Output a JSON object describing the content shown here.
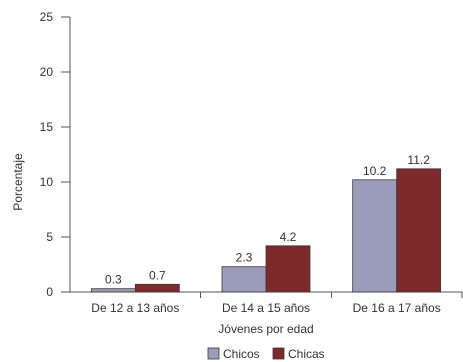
{
  "chart_data": {
    "type": "bar",
    "title": "",
    "xlabel": "Jóvenes por edad",
    "ylabel": "Porcentaje",
    "ylim": [
      0,
      25
    ],
    "yticks": [
      0,
      5,
      10,
      15,
      20,
      25
    ],
    "grid": false,
    "legend_position": "bottom-center",
    "categories": [
      "De 12 a 13 años",
      "De 14 a 15 años",
      "De 16 a 17 años"
    ],
    "series": [
      {
        "name": "Chicos",
        "color": "#9a9cb9",
        "values": [
          0.3,
          2.3,
          10.2
        ]
      },
      {
        "name": "Chicas",
        "color": "#7e2a2a",
        "values": [
          0.7,
          4.2,
          11.2
        ]
      }
    ]
  }
}
